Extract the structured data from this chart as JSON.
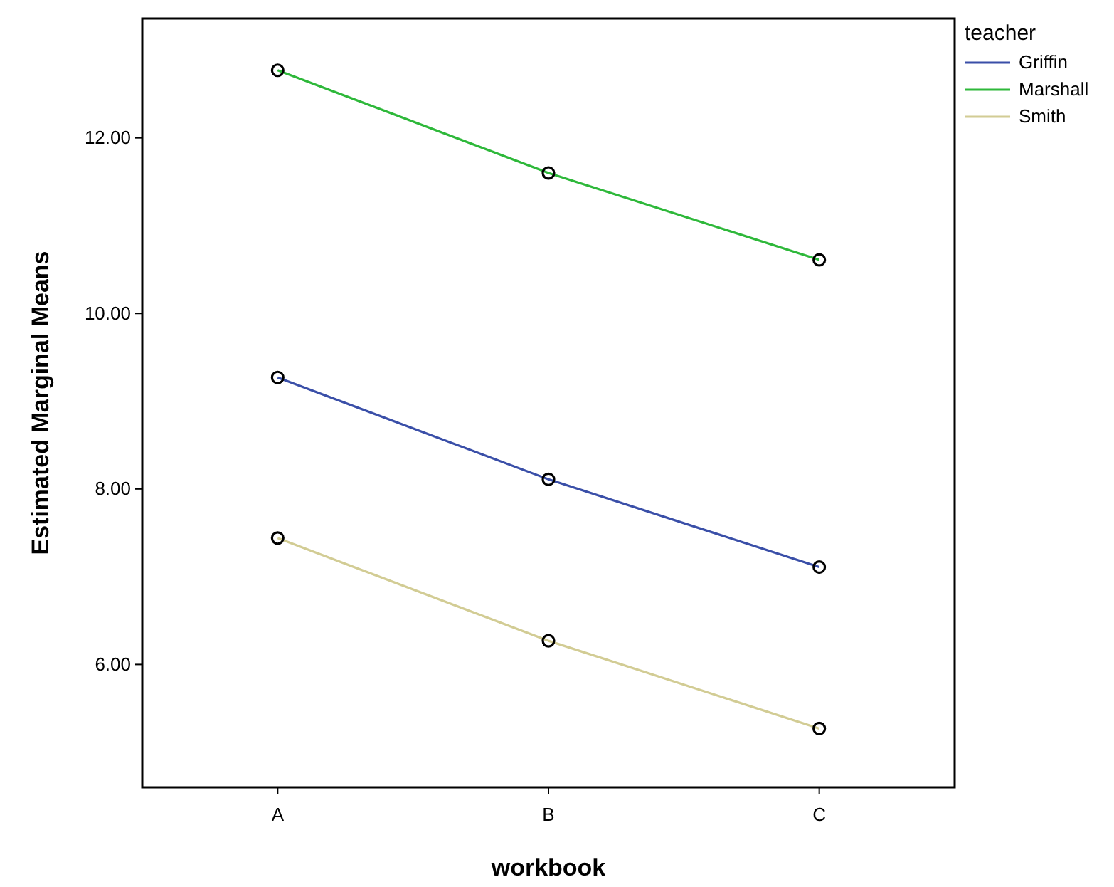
{
  "chart_data": {
    "type": "line",
    "xlabel": "workbook",
    "ylabel": "Estimated Marginal Means",
    "legend_title": "teacher",
    "categories": [
      "A",
      "B",
      "C"
    ],
    "series": [
      {
        "name": "Griffin",
        "color": "#3a4fa8",
        "values": [
          9.27,
          8.11,
          7.11
        ]
      },
      {
        "name": "Marshall",
        "color": "#2eb83a",
        "values": [
          12.77,
          11.6,
          10.61
        ]
      },
      {
        "name": "Smith",
        "color": "#d2cc94",
        "values": [
          7.44,
          6.27,
          5.27
        ]
      }
    ],
    "ylim": [
      4.6,
      13.36
    ],
    "yticks": [
      {
        "value": 6,
        "label": "6.00"
      },
      {
        "value": 8,
        "label": "8.00"
      },
      {
        "value": 10,
        "label": "10.00"
      },
      {
        "value": 12,
        "label": "12.00"
      }
    ],
    "grid": false,
    "legend": "top right",
    "marker": "circle",
    "line_style": "solid"
  }
}
